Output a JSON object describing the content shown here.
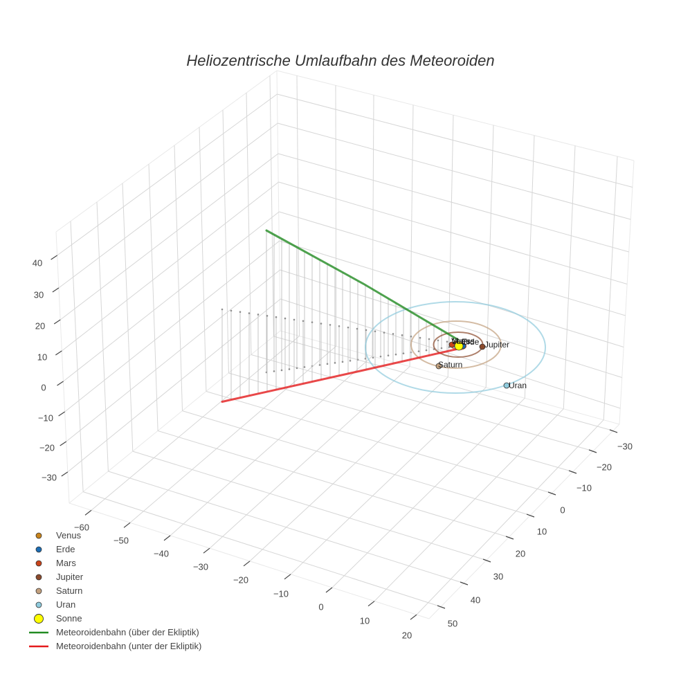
{
  "title": "Heliozentrische Umlaufbahn des Meteoroiden",
  "legend": {
    "items": [
      {
        "label": "Venus",
        "symbol": "circle",
        "color": "#c8841c"
      },
      {
        "label": "Erde",
        "symbol": "circle",
        "color": "#1c6db4"
      },
      {
        "label": "Mars",
        "symbol": "circle",
        "color": "#c9441a"
      },
      {
        "label": "Jupiter",
        "symbol": "circle",
        "color": "#8b4a2c"
      },
      {
        "label": "Saturn",
        "symbol": "circle",
        "color": "#c2a07e"
      },
      {
        "label": "Uran",
        "symbol": "circle",
        "color": "#8fcbdd"
      },
      {
        "label": "Sonne",
        "symbol": "circle",
        "color": "#ffff00"
      },
      {
        "label": "Meteoroidenbahn (über der Ekliptik)",
        "symbol": "line",
        "color": "#228b22"
      },
      {
        "label": "Meteoroidenbahn (unter der Ekliptik)",
        "symbol": "line",
        "color": "#e41a1c"
      }
    ]
  },
  "chart_data": {
    "type": "scatter3d",
    "title": "Heliozentrische Umlaufbahn des Meteoroiden",
    "axes": {
      "x": {
        "title": "",
        "range": [
          -65,
          23
        ],
        "ticks": [
          -60,
          -50,
          -40,
          -30,
          -20,
          -10,
          0,
          10,
          20
        ],
        "tick_labels": [
          "−60",
          "−50",
          "−40",
          "−30",
          "−20",
          "−10",
          "0",
          "10",
          "20"
        ]
      },
      "y": {
        "title": "",
        "range": [
          -33,
          55
        ],
        "ticks": [
          -30,
          -20,
          -10,
          0,
          10,
          20,
          30,
          40,
          50
        ],
        "tick_labels": [
          "−30",
          "−20",
          "−10",
          "0",
          "10",
          "20",
          "30",
          "40",
          "50"
        ]
      },
      "z": {
        "title": "",
        "range": [
          -40,
          48
        ],
        "ticks": [
          -30,
          -20,
          -10,
          0,
          10,
          20,
          30,
          40
        ],
        "tick_labels": [
          "−30",
          "−20",
          "−10",
          "0",
          "10",
          "20",
          "30",
          "40"
        ]
      }
    },
    "bodies": [
      {
        "name": "Venus",
        "text": "Venus",
        "position": [
          0.1,
          -0.7,
          0
        ],
        "orbit_radius": 0.72,
        "color": "#c8841c"
      },
      {
        "name": "Erde",
        "text": "Erde",
        "position": [
          0.8,
          -0.5,
          0
        ],
        "orbit_radius": 1.0,
        "color": "#1c6db4"
      },
      {
        "name": "Mars",
        "text": "Mars",
        "position": [
          -1.5,
          0.2,
          0
        ],
        "orbit_radius": 1.52,
        "color": "#c9441a"
      },
      {
        "name": "Jupiter",
        "text": "Jupiter",
        "position": [
          4.6,
          -2.2,
          0
        ],
        "orbit_radius": 5.2,
        "color": "#8b4a2c"
      },
      {
        "name": "Saturn",
        "text": "Saturn",
        "position": [
          0.8,
          9.5,
          0
        ],
        "orbit_radius": 9.5,
        "color": "#c2a07e"
      },
      {
        "name": "Uran",
        "text": "Uran",
        "position": [
          17.0,
          8.8,
          0
        ],
        "orbit_radius": 19.2,
        "color": "#8fcbdd"
      },
      {
        "name": "Sonne",
        "text": "",
        "position": [
          0,
          0,
          0
        ],
        "color": "#ffff00"
      }
    ],
    "series": [
      {
        "name": "Meteoroidenbahn (über der Ekliptik)",
        "type": "line",
        "color": "#228b22",
        "start": [
          -32,
          30,
          45
        ],
        "end": [
          0,
          0,
          0
        ],
        "projection_to_ecliptic": true
      },
      {
        "name": "Meteoroidenbahn (unter der Ekliptik)",
        "type": "line",
        "color": "#e41a1c",
        "start": [
          -55,
          11,
          -30
        ],
        "end": [
          0,
          0,
          0
        ],
        "projection_to_ecliptic": true
      }
    ],
    "grid": true,
    "legend_position": "bottom-left"
  }
}
